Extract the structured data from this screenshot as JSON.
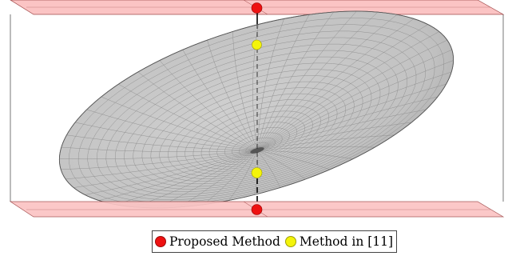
{
  "legend": {
    "items": [
      {
        "label": "Proposed Method",
        "color": "#ee1111"
      },
      {
        "label": "Method in [11]",
        "color": "#f4f40a"
      }
    ]
  },
  "colors": {
    "plane_fill": "#fbc4c4",
    "plane_stroke": "#a04848",
    "ellipsoid_fill": "#c7c7c7",
    "ellipsoid_mesh": "#8c8c8c",
    "box_stroke": "#555555",
    "axis_line": "#000000"
  }
}
